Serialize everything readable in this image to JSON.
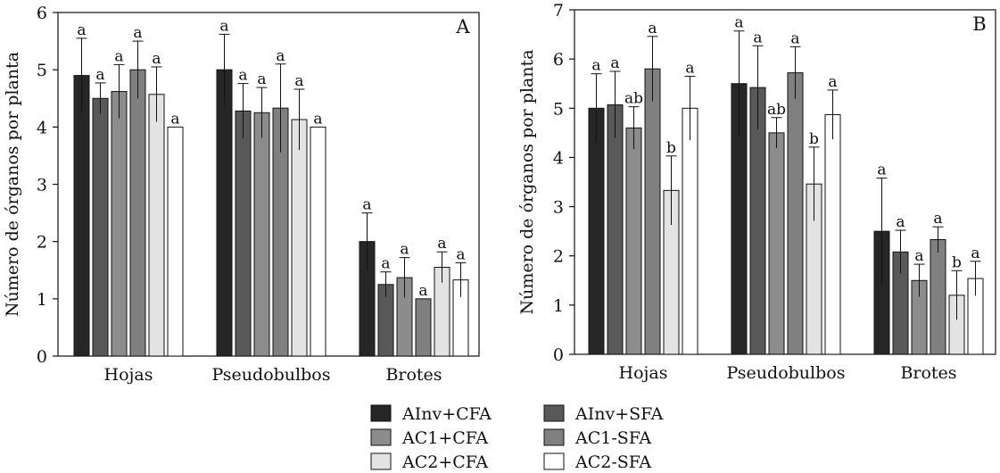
{
  "chart_data": [
    {
      "type": "bar",
      "panel_label": "A",
      "categories": [
        "Hojas",
        "Pseudobulbos",
        "Brotes"
      ],
      "ylabel": "Número de órganos por planta",
      "xlabel": "",
      "ylim": [
        0,
        6
      ],
      "yticks": [
        "0",
        "1",
        "2",
        "3",
        "4",
        "5",
        "6"
      ],
      "series": [
        {
          "name": "AInv+CFA",
          "values": [
            4.9,
            5.0,
            2.0
          ],
          "errors": [
            0.65,
            0.62,
            0.5
          ],
          "letters": [
            "a",
            "a",
            "a"
          ]
        },
        {
          "name": "AInv+SFA",
          "values": [
            4.5,
            4.28,
            1.25
          ],
          "errors": [
            0.27,
            0.48,
            0.22
          ],
          "letters": [
            "a",
            "a",
            "a"
          ]
        },
        {
          "name": "AC1+CFA",
          "values": [
            4.62,
            4.25,
            1.37
          ],
          "errors": [
            0.47,
            0.44,
            0.35
          ],
          "letters": [
            "a",
            "a",
            "a"
          ]
        },
        {
          "name": "AC1-SFA",
          "values": [
            5.0,
            4.33,
            1.0
          ],
          "errors": [
            0.5,
            0.77,
            0.0
          ],
          "letters": [
            "a",
            "a",
            "a"
          ]
        },
        {
          "name": "AC2+CFA",
          "values": [
            4.57,
            4.13,
            1.55
          ],
          "errors": [
            0.48,
            0.53,
            0.27
          ],
          "letters": [
            "a",
            "a",
            "a"
          ]
        },
        {
          "name": "AC2-SFA",
          "values": [
            4.0,
            4.0,
            1.33
          ],
          "errors": [
            0.0,
            0.0,
            0.3
          ],
          "letters": [
            "a",
            "a",
            "a"
          ]
        }
      ]
    },
    {
      "type": "bar",
      "panel_label": "B",
      "categories": [
        "Hojas",
        "Pseudobulbos",
        "Brotes"
      ],
      "ylabel": "Número de órganos por planta",
      "xlabel": "",
      "ylim": [
        0,
        7
      ],
      "yticks": [
        "0",
        "1",
        "2",
        "3",
        "4",
        "5",
        "6",
        "7"
      ],
      "series": [
        {
          "name": "AInv+CFA",
          "values": [
            5.0,
            5.5,
            2.5
          ],
          "errors": [
            0.7,
            1.07,
            1.08
          ],
          "letters": [
            "a",
            "a",
            "a"
          ]
        },
        {
          "name": "AInv+SFA",
          "values": [
            5.07,
            5.42,
            2.08
          ],
          "errors": [
            0.68,
            0.85,
            0.44
          ],
          "letters": [
            "a",
            "a",
            "a"
          ]
        },
        {
          "name": "AC1+CFA",
          "values": [
            4.6,
            4.5,
            1.5
          ],
          "errors": [
            0.43,
            0.31,
            0.33
          ],
          "letters": [
            "ab",
            "ab",
            "a"
          ]
        },
        {
          "name": "AC1-SFA",
          "values": [
            5.8,
            5.72,
            2.33
          ],
          "errors": [
            0.66,
            0.53,
            0.26
          ],
          "letters": [
            "a",
            "a",
            "a"
          ]
        },
        {
          "name": "AC2+CFA",
          "values": [
            3.33,
            3.46,
            1.2
          ],
          "errors": [
            0.7,
            0.75,
            0.5
          ],
          "letters": [
            "b",
            "b",
            "b"
          ]
        },
        {
          "name": "AC2-SFA",
          "values": [
            5.0,
            4.87,
            1.54
          ],
          "errors": [
            0.65,
            0.5,
            0.35
          ],
          "letters": [
            "a",
            "a",
            "a"
          ]
        }
      ]
    }
  ],
  "series_colors": [
    "#262626",
    "#595959",
    "#8c8c8c",
    "#808080",
    "#e3e3e3",
    "#ffffff"
  ],
  "legend": {
    "position": "bottom-center",
    "entries": [
      "AInv+CFA",
      "AInv+SFA",
      "AC1+CFA",
      "AC1-SFA",
      "AC2+CFA",
      "AC2-SFA"
    ]
  }
}
